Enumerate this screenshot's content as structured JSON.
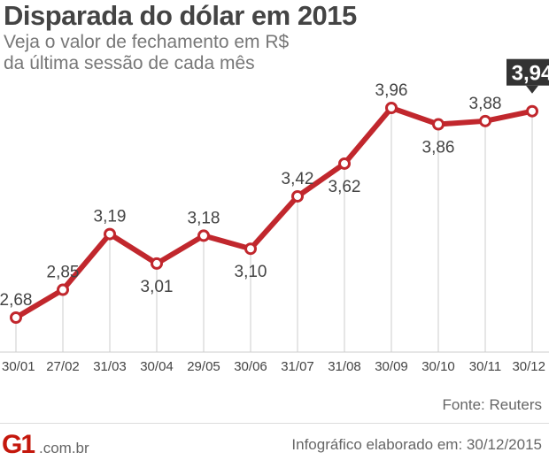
{
  "colors": {
    "line": "#c1272d",
    "text": "#444444",
    "grid": "#cccccc",
    "highlight_bg": "#333333"
  },
  "chart_data": {
    "type": "line",
    "title": "Disparada do dólar em 2015",
    "subtitle": [
      "Veja o valor de fechamento em R$",
      "da última sessão de cada mês"
    ],
    "categories": [
      "30/01",
      "27/02",
      "31/03",
      "30/04",
      "29/05",
      "30/06",
      "31/07",
      "31/08",
      "30/09",
      "30/10",
      "30/11",
      "30/12"
    ],
    "values": [
      2.68,
      2.85,
      3.19,
      3.01,
      3.18,
      3.1,
      3.42,
      3.62,
      3.96,
      3.86,
      3.88,
      3.94
    ],
    "value_labels": [
      "2,68",
      "2,85",
      "3,19",
      "3,01",
      "3,18",
      "3,10",
      "3,42",
      "3,62",
      "3,96",
      "3,86",
      "3,88",
      "3,94"
    ],
    "label_side": [
      "above",
      "above",
      "above",
      "below",
      "above",
      "below",
      "above",
      "below",
      "above",
      "below",
      "above",
      "above"
    ],
    "highlight_index": 11,
    "ylim": [
      2.6,
      4.0
    ],
    "xlabel": "",
    "ylabel": "",
    "grid": "vertical"
  },
  "footer": {
    "source": "Fonte: Reuters",
    "logo_text": "G1",
    "logo_domain": ".com.br",
    "credit": "Infográfico elaborado em: 30/12/2015"
  }
}
